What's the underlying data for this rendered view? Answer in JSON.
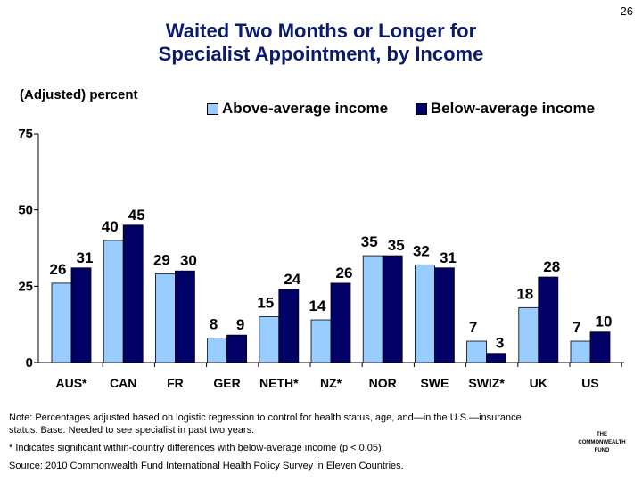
{
  "page_number": "26",
  "title_line1": "Waited Two Months or Longer for",
  "title_line2": "Specialist Appointment, by Income",
  "colors": {
    "above": "#99ccff",
    "below": "#000066",
    "title": "#0b1a6b"
  },
  "chart_data": {
    "type": "bar",
    "title": "Waited Two Months or Longer for Specialist Appointment, by Income",
    "ylabel": "(Adjusted) percent",
    "xlabel": "",
    "ylim": [
      0,
      75
    ],
    "yticks": [
      "0",
      "25",
      "50",
      "75"
    ],
    "categories": [
      "AUS*",
      "CAN",
      "FR",
      "GER",
      "NETH*",
      "NZ*",
      "NOR",
      "SWE",
      "SWIZ*",
      "UK",
      "US"
    ],
    "series": [
      {
        "name": "Above-average income",
        "values": [
          26,
          40,
          29,
          8,
          15,
          14,
          35,
          32,
          7,
          18,
          7
        ]
      },
      {
        "name": "Below-average income",
        "values": [
          31,
          45,
          30,
          9,
          24,
          26,
          35,
          31,
          3,
          28,
          10
        ]
      }
    ]
  },
  "notes": {
    "note1": "Note: Percentages adjusted based on logistic regression to control for health status, age, and—in the U.S.—insurance status. Base: Needed to see specialist in past two years.",
    "note2": "* Indicates significant within-country differences with below-average income (p < 0.05).",
    "source": "Source: 2010 Commonwealth Fund International Health Policy Survey in Eleven Countries."
  },
  "logo": {
    "line1": "THE",
    "line2": "COMMONWEALTH",
    "line3": "FUND"
  }
}
